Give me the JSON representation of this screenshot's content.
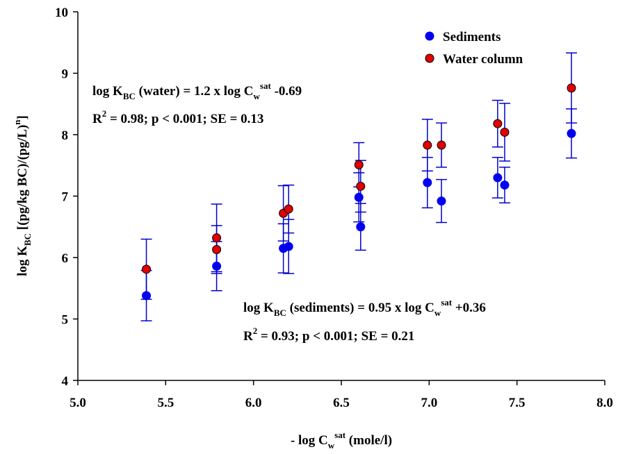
{
  "chart_data": {
    "type": "scatter",
    "xlabel": [
      "- log C",
      {
        "sub": "w"
      },
      {
        "sup": "sat"
      },
      " (mole/l)"
    ],
    "ylabel": [
      "log K",
      {
        "sub": "BC"
      },
      " [(pg/kg BC)/(pg/L)",
      {
        "sup": "n"
      },
      "]"
    ],
    "xlim": [
      5,
      8
    ],
    "xticks": [
      {
        "value": 5,
        "label": "5.0"
      },
      {
        "value": 5.5,
        "label": "5.5"
      },
      {
        "value": 6,
        "label": "6.0"
      },
      {
        "value": 6.5,
        "label": "6.5"
      },
      {
        "value": 7,
        "label": "7.0"
      },
      {
        "value": 7.5,
        "label": "7.5"
      },
      {
        "value": 8,
        "label": "8.0"
      }
    ],
    "ylim": [
      4,
      10
    ],
    "yticks": [
      4,
      5,
      6,
      7,
      8,
      9,
      10
    ],
    "legend": "upper right",
    "series": [
      {
        "name": "Sediments",
        "color": "#0000ee",
        "x": [
          5.39,
          5.79,
          6.17,
          6.2,
          6.6,
          6.61,
          6.99,
          7.07,
          7.39,
          7.43,
          7.81
        ],
        "values": [
          5.38,
          5.86,
          6.15,
          6.18,
          6.98,
          6.5,
          7.22,
          6.92,
          7.3,
          7.18,
          8.02
        ],
        "errors": [
          0.41,
          0.4,
          0.4,
          0.44,
          0.4,
          0.38,
          0.41,
          0.35,
          0.33,
          0.29,
          0.4
        ]
      },
      {
        "name": "Water column",
        "color": "#e00000",
        "x": [
          5.39,
          5.79,
          5.79,
          6.17,
          6.2,
          6.6,
          6.61,
          6.99,
          7.07,
          7.39,
          7.43,
          7.81
        ],
        "values": [
          5.81,
          6.32,
          6.13,
          6.72,
          6.79,
          7.51,
          7.16,
          7.83,
          7.83,
          8.18,
          8.04,
          8.76
        ],
        "errors": [
          0.49,
          0.55,
          0.39,
          0.45,
          0.39,
          0.36,
          0.42,
          0.42,
          0.36,
          0.38,
          0.47,
          0.57
        ]
      }
    ],
    "annotations": [
      [
        "log K",
        {
          "sub": "BC"
        },
        " (water) = 1.2 x log C",
        {
          "sub": "w"
        },
        {
          "sup": "sat"
        },
        " -0.69"
      ],
      [
        "R",
        {
          "sup": "2"
        },
        " = 0.98; p < 0.001; SE = 0.13"
      ],
      [
        "log K",
        {
          "sub": "BC"
        },
        " (sediments) = 0.95 x log C",
        {
          "sub": "w"
        },
        {
          "sup": "sat"
        },
        " +0.36"
      ],
      [
        "R",
        {
          "sup": "2"
        },
        " = 0.93; p < 0.001; SE = 0.21"
      ]
    ]
  }
}
